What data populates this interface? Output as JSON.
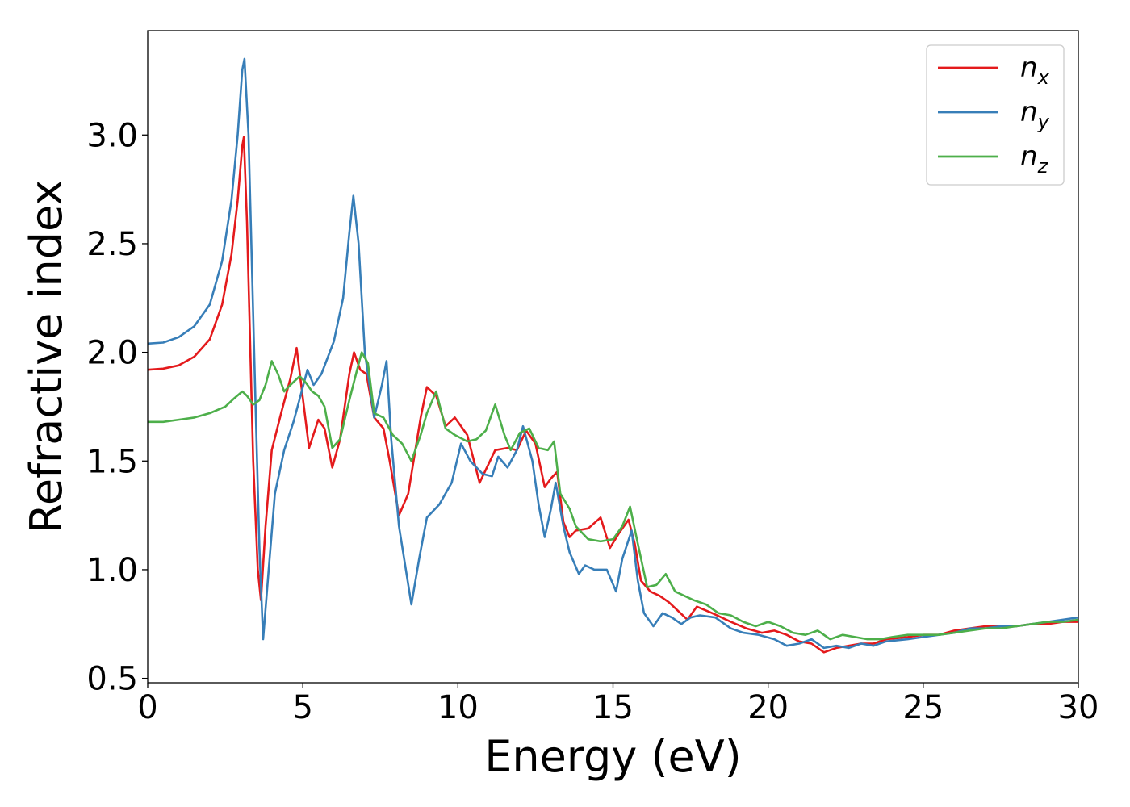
{
  "chart_data": {
    "type": "line",
    "title": "",
    "xlabel": "Energy (eV)",
    "ylabel": "Refractive index",
    "xlim": [
      0,
      30
    ],
    "ylim": [
      0.48,
      3.48
    ],
    "xticks": [
      0,
      5,
      10,
      15,
      20,
      25,
      30
    ],
    "yticks": [
      0.5,
      1.0,
      1.5,
      2.0,
      2.5,
      3.0
    ],
    "xtick_labels": [
      "0",
      "5",
      "10",
      "15",
      "20",
      "25",
      "30"
    ],
    "ytick_labels": [
      "0.5",
      "1.0",
      "1.5",
      "2.0",
      "2.5",
      "3.0"
    ],
    "grid": false,
    "legend_position": "top-right",
    "series": [
      {
        "label_base": "n",
        "label_sub": "x",
        "color": "#e41a1c",
        "points": [
          [
            0,
            1.92
          ],
          [
            0.5,
            1.925
          ],
          [
            1,
            1.94
          ],
          [
            1.5,
            1.98
          ],
          [
            2,
            2.06
          ],
          [
            2.4,
            2.22
          ],
          [
            2.7,
            2.45
          ],
          [
            2.9,
            2.7
          ],
          [
            3.05,
            2.95
          ],
          [
            3.1,
            2.99
          ],
          [
            3.2,
            2.6
          ],
          [
            3.4,
            1.5
          ],
          [
            3.55,
            1.0
          ],
          [
            3.65,
            0.86
          ],
          [
            3.8,
            1.2
          ],
          [
            4.0,
            1.55
          ],
          [
            4.3,
            1.72
          ],
          [
            4.6,
            1.88
          ],
          [
            4.8,
            2.02
          ],
          [
            4.95,
            1.85
          ],
          [
            5.2,
            1.56
          ],
          [
            5.5,
            1.69
          ],
          [
            5.7,
            1.65
          ],
          [
            5.95,
            1.47
          ],
          [
            6.2,
            1.6
          ],
          [
            6.5,
            1.9
          ],
          [
            6.65,
            2.0
          ],
          [
            6.85,
            1.92
          ],
          [
            7.05,
            1.9
          ],
          [
            7.3,
            1.7
          ],
          [
            7.6,
            1.65
          ],
          [
            7.8,
            1.5
          ],
          [
            8.1,
            1.25
          ],
          [
            8.4,
            1.35
          ],
          [
            8.8,
            1.7
          ],
          [
            9.0,
            1.84
          ],
          [
            9.3,
            1.8
          ],
          [
            9.6,
            1.66
          ],
          [
            9.9,
            1.7
          ],
          [
            10.3,
            1.62
          ],
          [
            10.7,
            1.4
          ],
          [
            11.2,
            1.55
          ],
          [
            11.6,
            1.56
          ],
          [
            11.9,
            1.55
          ],
          [
            12.2,
            1.64
          ],
          [
            12.5,
            1.58
          ],
          [
            12.8,
            1.38
          ],
          [
            13.0,
            1.42
          ],
          [
            13.2,
            1.45
          ],
          [
            13.4,
            1.22
          ],
          [
            13.6,
            1.15
          ],
          [
            13.8,
            1.18
          ],
          [
            14.2,
            1.19
          ],
          [
            14.6,
            1.24
          ],
          [
            14.9,
            1.1
          ],
          [
            15.2,
            1.17
          ],
          [
            15.5,
            1.23
          ],
          [
            15.7,
            1.12
          ],
          [
            15.9,
            0.95
          ],
          [
            16.2,
            0.9
          ],
          [
            16.5,
            0.88
          ],
          [
            16.8,
            0.85
          ],
          [
            17.1,
            0.81
          ],
          [
            17.4,
            0.77
          ],
          [
            17.7,
            0.83
          ],
          [
            18.2,
            0.8
          ],
          [
            18.8,
            0.76
          ],
          [
            19.3,
            0.73
          ],
          [
            19.8,
            0.71
          ],
          [
            20.2,
            0.72
          ],
          [
            20.6,
            0.7
          ],
          [
            21.0,
            0.67
          ],
          [
            21.4,
            0.66
          ],
          [
            21.8,
            0.62
          ],
          [
            22.2,
            0.64
          ],
          [
            22.6,
            0.65
          ],
          [
            23.0,
            0.66
          ],
          [
            23.4,
            0.66
          ],
          [
            23.8,
            0.68
          ],
          [
            24.5,
            0.69
          ],
          [
            25.0,
            0.7
          ],
          [
            25.5,
            0.7
          ],
          [
            26.0,
            0.72
          ],
          [
            26.5,
            0.73
          ],
          [
            27.0,
            0.74
          ],
          [
            27.5,
            0.74
          ],
          [
            28.0,
            0.74
          ],
          [
            28.5,
            0.75
          ],
          [
            29.0,
            0.75
          ],
          [
            29.5,
            0.76
          ],
          [
            30.0,
            0.76
          ]
        ]
      },
      {
        "label_base": "n",
        "label_sub": "y",
        "color": "#377eb8",
        "points": [
          [
            0,
            2.04
          ],
          [
            0.5,
            2.045
          ],
          [
            1,
            2.07
          ],
          [
            1.5,
            2.12
          ],
          [
            2,
            2.22
          ],
          [
            2.4,
            2.42
          ],
          [
            2.7,
            2.7
          ],
          [
            2.9,
            3.0
          ],
          [
            3.05,
            3.3
          ],
          [
            3.12,
            3.35
          ],
          [
            3.25,
            3.0
          ],
          [
            3.45,
            1.9
          ],
          [
            3.6,
            1.1
          ],
          [
            3.72,
            0.68
          ],
          [
            3.9,
            1.0
          ],
          [
            4.1,
            1.35
          ],
          [
            4.4,
            1.55
          ],
          [
            4.7,
            1.68
          ],
          [
            5.0,
            1.84
          ],
          [
            5.15,
            1.92
          ],
          [
            5.35,
            1.85
          ],
          [
            5.6,
            1.9
          ],
          [
            6.0,
            2.05
          ],
          [
            6.3,
            2.25
          ],
          [
            6.5,
            2.55
          ],
          [
            6.63,
            2.72
          ],
          [
            6.8,
            2.5
          ],
          [
            7.0,
            2.0
          ],
          [
            7.3,
            1.7
          ],
          [
            7.55,
            1.85
          ],
          [
            7.7,
            1.96
          ],
          [
            7.85,
            1.6
          ],
          [
            8.1,
            1.2
          ],
          [
            8.5,
            0.84
          ],
          [
            8.75,
            1.05
          ],
          [
            9.0,
            1.24
          ],
          [
            9.4,
            1.3
          ],
          [
            9.8,
            1.4
          ],
          [
            10.1,
            1.58
          ],
          [
            10.4,
            1.5
          ],
          [
            10.8,
            1.44
          ],
          [
            11.1,
            1.43
          ],
          [
            11.3,
            1.52
          ],
          [
            11.6,
            1.47
          ],
          [
            11.9,
            1.55
          ],
          [
            12.1,
            1.66
          ],
          [
            12.4,
            1.5
          ],
          [
            12.6,
            1.3
          ],
          [
            12.8,
            1.15
          ],
          [
            13.0,
            1.28
          ],
          [
            13.15,
            1.4
          ],
          [
            13.4,
            1.2
          ],
          [
            13.6,
            1.08
          ],
          [
            13.9,
            0.98
          ],
          [
            14.1,
            1.02
          ],
          [
            14.4,
            1.0
          ],
          [
            14.8,
            1.0
          ],
          [
            15.1,
            0.9
          ],
          [
            15.3,
            1.05
          ],
          [
            15.6,
            1.18
          ],
          [
            15.8,
            0.95
          ],
          [
            16.0,
            0.8
          ],
          [
            16.3,
            0.74
          ],
          [
            16.6,
            0.8
          ],
          [
            16.9,
            0.78
          ],
          [
            17.2,
            0.75
          ],
          [
            17.5,
            0.78
          ],
          [
            17.8,
            0.79
          ],
          [
            18.3,
            0.78
          ],
          [
            18.8,
            0.73
          ],
          [
            19.2,
            0.71
          ],
          [
            19.7,
            0.7
          ],
          [
            20.2,
            0.68
          ],
          [
            20.6,
            0.65
          ],
          [
            21.0,
            0.66
          ],
          [
            21.4,
            0.68
          ],
          [
            21.8,
            0.64
          ],
          [
            22.2,
            0.65
          ],
          [
            22.6,
            0.64
          ],
          [
            23.0,
            0.66
          ],
          [
            23.4,
            0.65
          ],
          [
            23.8,
            0.67
          ],
          [
            24.5,
            0.68
          ],
          [
            25.0,
            0.69
          ],
          [
            25.5,
            0.7
          ],
          [
            26.0,
            0.71
          ],
          [
            26.5,
            0.73
          ],
          [
            27.0,
            0.73
          ],
          [
            27.5,
            0.74
          ],
          [
            28.0,
            0.74
          ],
          [
            28.5,
            0.75
          ],
          [
            29.0,
            0.76
          ],
          [
            29.5,
            0.77
          ],
          [
            30.0,
            0.78
          ]
        ]
      },
      {
        "label_base": "n",
        "label_sub": "z",
        "color": "#4daf4a",
        "points": [
          [
            0,
            1.68
          ],
          [
            0.5,
            1.68
          ],
          [
            1,
            1.69
          ],
          [
            1.5,
            1.7
          ],
          [
            2,
            1.72
          ],
          [
            2.5,
            1.75
          ],
          [
            2.8,
            1.79
          ],
          [
            3.05,
            1.82
          ],
          [
            3.2,
            1.8
          ],
          [
            3.4,
            1.76
          ],
          [
            3.6,
            1.78
          ],
          [
            3.8,
            1.85
          ],
          [
            4.0,
            1.96
          ],
          [
            4.2,
            1.9
          ],
          [
            4.4,
            1.82
          ],
          [
            4.6,
            1.85
          ],
          [
            4.9,
            1.89
          ],
          [
            5.1,
            1.86
          ],
          [
            5.3,
            1.82
          ],
          [
            5.5,
            1.8
          ],
          [
            5.7,
            1.75
          ],
          [
            5.95,
            1.56
          ],
          [
            6.2,
            1.6
          ],
          [
            6.5,
            1.78
          ],
          [
            6.75,
            1.92
          ],
          [
            6.9,
            2.0
          ],
          [
            7.1,
            1.95
          ],
          [
            7.3,
            1.72
          ],
          [
            7.6,
            1.7
          ],
          [
            7.9,
            1.62
          ],
          [
            8.2,
            1.58
          ],
          [
            8.5,
            1.5
          ],
          [
            8.8,
            1.62
          ],
          [
            9.0,
            1.72
          ],
          [
            9.3,
            1.82
          ],
          [
            9.6,
            1.65
          ],
          [
            9.9,
            1.62
          ],
          [
            10.3,
            1.59
          ],
          [
            10.6,
            1.6
          ],
          [
            10.9,
            1.64
          ],
          [
            11.2,
            1.76
          ],
          [
            11.5,
            1.62
          ],
          [
            11.7,
            1.55
          ],
          [
            12.0,
            1.63
          ],
          [
            12.3,
            1.65
          ],
          [
            12.6,
            1.56
          ],
          [
            12.9,
            1.55
          ],
          [
            13.1,
            1.59
          ],
          [
            13.3,
            1.35
          ],
          [
            13.6,
            1.28
          ],
          [
            13.8,
            1.2
          ],
          [
            14.2,
            1.14
          ],
          [
            14.6,
            1.13
          ],
          [
            15.0,
            1.14
          ],
          [
            15.3,
            1.2
          ],
          [
            15.55,
            1.29
          ],
          [
            15.8,
            1.12
          ],
          [
            16.1,
            0.92
          ],
          [
            16.4,
            0.93
          ],
          [
            16.7,
            0.98
          ],
          [
            17.0,
            0.9
          ],
          [
            17.3,
            0.88
          ],
          [
            17.6,
            0.86
          ],
          [
            18.0,
            0.84
          ],
          [
            18.4,
            0.8
          ],
          [
            18.8,
            0.79
          ],
          [
            19.2,
            0.76
          ],
          [
            19.6,
            0.74
          ],
          [
            20.0,
            0.76
          ],
          [
            20.4,
            0.74
          ],
          [
            20.8,
            0.71
          ],
          [
            21.2,
            0.7
          ],
          [
            21.6,
            0.72
          ],
          [
            22.0,
            0.68
          ],
          [
            22.4,
            0.7
          ],
          [
            22.8,
            0.69
          ],
          [
            23.2,
            0.68
          ],
          [
            23.6,
            0.68
          ],
          [
            24.0,
            0.69
          ],
          [
            24.5,
            0.7
          ],
          [
            25.0,
            0.7
          ],
          [
            25.5,
            0.7
          ],
          [
            26.0,
            0.71
          ],
          [
            26.5,
            0.72
          ],
          [
            27.0,
            0.73
          ],
          [
            27.5,
            0.73
          ],
          [
            28.0,
            0.74
          ],
          [
            28.5,
            0.75
          ],
          [
            29.0,
            0.76
          ],
          [
            29.5,
            0.76
          ],
          [
            30.0,
            0.77
          ]
        ]
      }
    ]
  }
}
